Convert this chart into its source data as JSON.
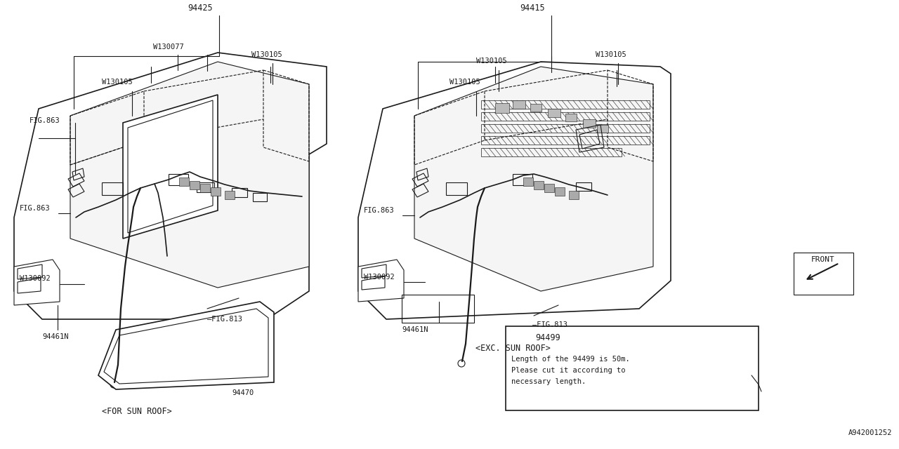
{
  "bg_color": "#ffffff",
  "lc": "#1a1a1a",
  "fig_number": "A942001252",
  "left_part": "94425",
  "right_part": "94415",
  "note_part": "94499",
  "note_line1": "Length of the 94499 is 50m.",
  "note_line2": "Please cut it according to",
  "note_line3": "necessary length.",
  "left_label": "<FOR SUN ROOF>",
  "right_label": "<EXC. SUN ROOF>",
  "front_label": "FRONT"
}
